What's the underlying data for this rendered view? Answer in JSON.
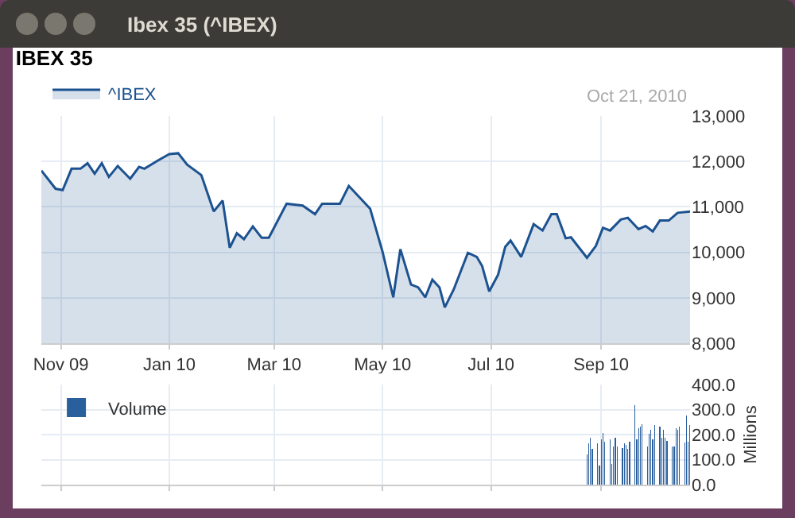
{
  "chart_data": [
    {
      "type": "area",
      "title": "IBEX 35",
      "annotations": [
        "Ibex 35 (^IBEX)",
        "Oct 21, 2010"
      ],
      "legend": "top left",
      "grid": true,
      "x": [
        "2009-10-21",
        "2009-10-29",
        "2009-11-02",
        "2009-11-07",
        "2009-11-12",
        "2009-11-16",
        "2009-11-20",
        "2009-11-24",
        "2009-11-28",
        "2009-12-03",
        "2009-12-10",
        "2009-12-15",
        "2009-12-18",
        "2009-12-26",
        "2010-01-01",
        "2010-01-06",
        "2010-01-11",
        "2010-01-19",
        "2010-01-26",
        "2010-01-31",
        "2010-02-04",
        "2010-02-08",
        "2010-02-12",
        "2010-02-17",
        "2010-02-22",
        "2010-02-26",
        "2010-03-08",
        "2010-03-17",
        "2010-03-24",
        "2010-03-28",
        "2010-04-07",
        "2010-04-12",
        "2010-04-24",
        "2010-05-01",
        "2010-05-07",
        "2010-05-11",
        "2010-05-14",
        "2010-05-17",
        "2010-05-21",
        "2010-05-25",
        "2010-05-29",
        "2010-06-02",
        "2010-06-05",
        "2010-06-10",
        "2010-06-18",
        "2010-06-23",
        "2010-06-26",
        "2010-06-30",
        "2010-07-05",
        "2010-07-09",
        "2010-07-12",
        "2010-07-18",
        "2010-07-25",
        "2010-07-30",
        "2010-08-04",
        "2010-08-07",
        "2010-08-12",
        "2010-08-15",
        "2010-08-24",
        "2010-08-29",
        "2010-09-02",
        "2010-09-06",
        "2010-09-12",
        "2010-09-16",
        "2010-09-22",
        "2010-09-26",
        "2010-09-30",
        "2010-10-04",
        "2010-10-09",
        "2010-10-14",
        "2010-10-21"
      ],
      "series": [
        {
          "name": "^IBEX",
          "color": "#1c5290",
          "values": [
            11800,
            11400,
            11370,
            11840,
            11840,
            11960,
            11730,
            11960,
            11660,
            11900,
            11620,
            11880,
            11840,
            12030,
            12160,
            12180,
            11930,
            11700,
            10900,
            11140,
            10100,
            10420,
            10290,
            10570,
            10320,
            10320,
            11070,
            11030,
            10840,
            11070,
            11070,
            11460,
            10960,
            10010,
            9010,
            10070,
            9680,
            9290,
            9230,
            9010,
            9400,
            9230,
            8790,
            9180,
            9990,
            9900,
            9700,
            9140,
            9510,
            10120,
            10260,
            9900,
            10620,
            10480,
            10840,
            10840,
            10310,
            10330,
            9880,
            10140,
            10540,
            10480,
            10720,
            10760,
            10510,
            10580,
            10460,
            10700,
            10700,
            10870,
            10900
          ]
        }
      ],
      "xlim": [
        "2009-10-21",
        "2010-10-21"
      ],
      "xticks": [
        {
          "value": "2009-11-01",
          "label": "Nov 09"
        },
        {
          "value": "2010-01-01",
          "label": "Jan 10"
        },
        {
          "value": "2010-03-01",
          "label": "Mar 10"
        },
        {
          "value": "2010-05-01",
          "label": "May 10"
        },
        {
          "value": "2010-07-01",
          "label": "Jul 10"
        },
        {
          "value": "2010-09-01",
          "label": "Sep 10"
        }
      ],
      "ylim": [
        8000,
        13000
      ],
      "yticks": [
        {
          "value": 8000,
          "label": "8,000"
        },
        {
          "value": 9000,
          "label": "9,000"
        },
        {
          "value": 10000,
          "label": "10,000"
        },
        {
          "value": 11000,
          "label": "11,000"
        },
        {
          "value": 12000,
          "label": "12,000"
        },
        {
          "value": 13000,
          "label": "13,000"
        }
      ]
    },
    {
      "type": "bar",
      "ylabel": "Millions",
      "legend": "top left",
      "grid": true,
      "tick_labels": "y",
      "x": [
        "2010-08-24",
        "2010-08-25",
        "2010-08-26",
        "2010-08-27",
        "2010-08-30",
        "2010-08-31",
        "2010-09-01",
        "2010-09-02",
        "2010-09-03",
        "2010-09-06",
        "2010-09-07",
        "2010-09-08",
        "2010-09-09",
        "2010-09-10",
        "2010-09-13",
        "2010-09-14",
        "2010-09-15",
        "2010-09-16",
        "2010-09-17",
        "2010-09-20",
        "2010-09-21",
        "2010-09-22",
        "2010-09-23",
        "2010-09-24",
        "2010-09-27",
        "2010-09-28",
        "2010-09-29",
        "2010-09-30",
        "2010-10-01",
        "2010-10-04",
        "2010-10-05",
        "2010-10-06",
        "2010-10-07",
        "2010-10-08",
        "2010-10-11",
        "2010-10-12",
        "2010-10-13",
        "2010-10-14",
        "2010-10-15",
        "2010-10-18",
        "2010-10-19",
        "2010-10-20",
        "2010-10-21"
      ],
      "series": [
        {
          "name": "Volume",
          "color": "#2a5f9e",
          "values": [
            121,
            165,
            187,
            143,
            165,
            77,
            180,
            207,
            171,
            180,
            84,
            154,
            187,
            154,
            147,
            165,
            160,
            143,
            171,
            319,
            180,
            224,
            231,
            242,
            154,
            202,
            220,
            180,
            237,
            231,
            187,
            220,
            187,
            176,
            154,
            154,
            224,
            220,
            231,
            169,
            275,
            171,
            237
          ]
        }
      ],
      "xlim": [
        "2009-10-21",
        "2010-10-21"
      ],
      "xticks": [
        "2009-11-01",
        "2010-01-01",
        "2010-03-01",
        "2010-05-01",
        "2010-07-01",
        "2010-09-01"
      ],
      "ylim": [
        0,
        400
      ],
      "yticks": [
        {
          "value": 0,
          "label": "0.0"
        },
        {
          "value": 100,
          "label": "100.0"
        },
        {
          "value": 200,
          "label": "200.0"
        },
        {
          "value": 300,
          "label": "300.0"
        },
        {
          "value": 400,
          "label": "400.0"
        }
      ]
    }
  ]
}
